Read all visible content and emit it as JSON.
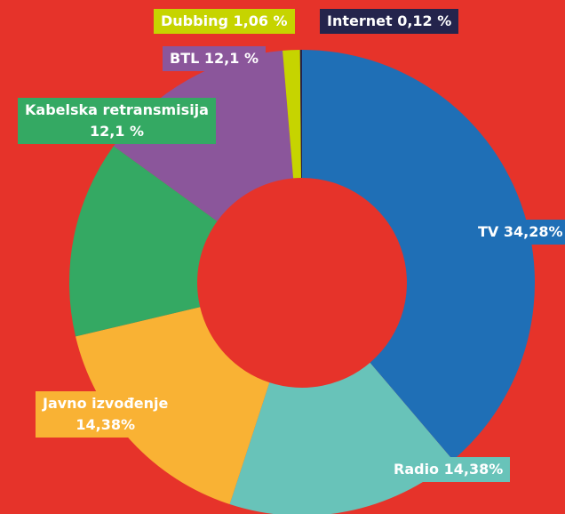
{
  "chart_data": {
    "type": "donut",
    "categories": [
      "TV",
      "Radio",
      "Javno izvođenje",
      "Kabelska retransmisija",
      "BTL",
      "Dubbing",
      "Internet"
    ],
    "values": [
      34.28,
      14.38,
      14.38,
      12.1,
      12.1,
      1.06,
      0.12
    ],
    "value_labels": [
      "34,28%",
      "14,38%",
      "14,38%",
      "12,1 %",
      "12,1 %",
      "1,06 %",
      "0,12 %"
    ],
    "colors": [
      "#1f6fb6",
      "#68c3b9",
      "#f9b234",
      "#34a963",
      "#8b569b",
      "#c6d400",
      "#24244c"
    ]
  }
}
